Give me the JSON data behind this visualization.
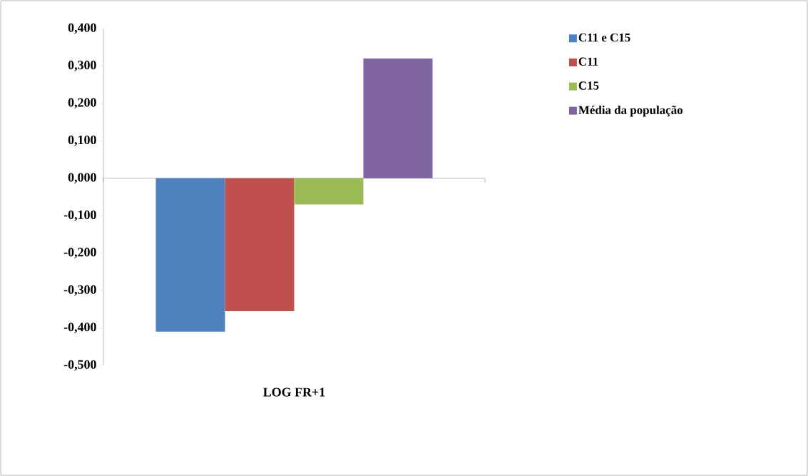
{
  "chart_data": {
    "type": "bar",
    "categories": [
      "LOG FR+1"
    ],
    "series": [
      {
        "name": "C11 e C15",
        "color": "#4f81bd",
        "values": [
          -0.41
        ]
      },
      {
        "name": "C11",
        "color": "#c0504d",
        "values": [
          -0.355
        ]
      },
      {
        "name": "C15",
        "color": "#9bbb59",
        "values": [
          -0.07
        ]
      },
      {
        "name": "Média da população",
        "color": "#8064a2",
        "values": [
          0.32
        ]
      }
    ],
    "ylim": [
      -0.5,
      0.4
    ],
    "yticks": [
      {
        "value": -0.5,
        "label": "-0,500"
      },
      {
        "value": -0.4,
        "label": "-0,400"
      },
      {
        "value": -0.3,
        "label": "-0,300"
      },
      {
        "value": -0.2,
        "label": "-0,200"
      },
      {
        "value": -0.1,
        "label": "-0,100"
      },
      {
        "value": 0,
        "label": "0,000"
      },
      {
        "value": 0.1,
        "label": "0,100"
      },
      {
        "value": 0.2,
        "label": "0,200"
      },
      {
        "value": 0.3,
        "label": "0,300"
      },
      {
        "value": 0.4,
        "label": "0,400"
      }
    ],
    "grid": false,
    "legend": "right"
  }
}
